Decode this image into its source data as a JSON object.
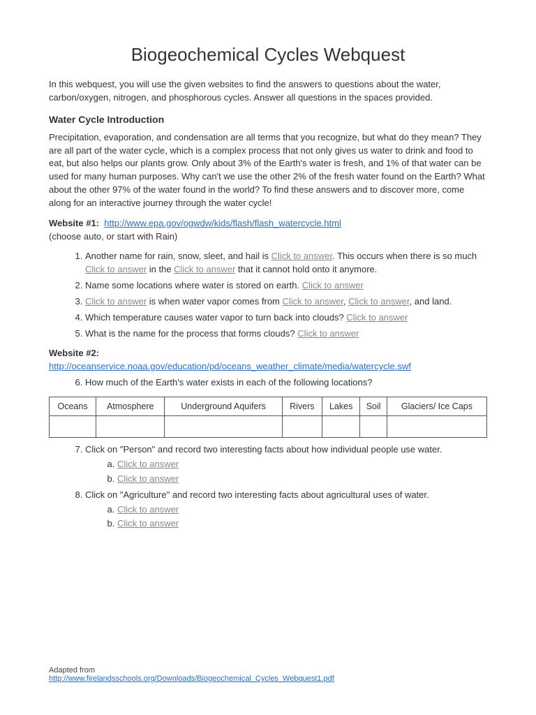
{
  "title": "Biogeochemical Cycles Webquest",
  "intro": "In this webquest, you will use the given websites to find the answers to questions about the water, carbon/oxygen, nitrogen, and phosphorous cycles. Answer all questions in the spaces provided.",
  "section1_heading": "Water Cycle Introduction",
  "section1_para": "Precipitation, evaporation, and condensation are all terms that you recognize, but what do they mean? They are all part of the water cycle, which is a complex process that not only gives us water to drink and food to eat, but also helps our plants grow. Only about 3% of the Earth's water is fresh, and 1% of that water can be used for many human purposes. Why can't we use the other 2% of the fresh water found on the Earth? What about the other 97% of the water found in the world? To find these answers and to discover more, come along for an interactive journey through the water cycle!",
  "website1_label": "Website #1:",
  "website1_url": "http://www.epa.gov/ogwdw/kids/flash/flash_watercycle.html",
  "website1_note": "(choose auto, or start with Rain)",
  "click": "Click to answer",
  "q1_a": "Another name for rain, snow, sleet, and hail is ",
  "q1_b": ". This occurs when there is so much ",
  "q1_c": " in the ",
  "q1_d": " that it cannot hold onto it anymore.",
  "q2": "Name some locations where water is stored on earth. ",
  "q3_a": " is when water vapor comes from ",
  "q3_b": ", ",
  "q3_c": ", and land.",
  "q4": "Which temperature causes water vapor to turn back into clouds? ",
  "q5": "What is the name for the process that forms clouds? ",
  "website2_label": "Website #2:",
  "website2_url": "http://oceanservice.noaa.gov/education/pd/oceans_weather_climate/media/watercycle.swf",
  "q6": "How much of the Earth's water exists in each of the following locations?",
  "table_headers": [
    "Oceans",
    "Atmosphere",
    "Underground Aquifers",
    "Rivers",
    "Lakes",
    "Soil",
    "Glaciers/ Ice Caps"
  ],
  "q7": "Click on \"Person\" and record two interesting facts about how individual people use water.",
  "q8": "Click on \"Agriculture\" and record two interesting facts about agricultural uses of water.",
  "footer_label": "Adapted from",
  "footer_url": "http://www.firelandsschools.org/Downloads/Biogeochemical_Cycles_Webquest1.pdf"
}
